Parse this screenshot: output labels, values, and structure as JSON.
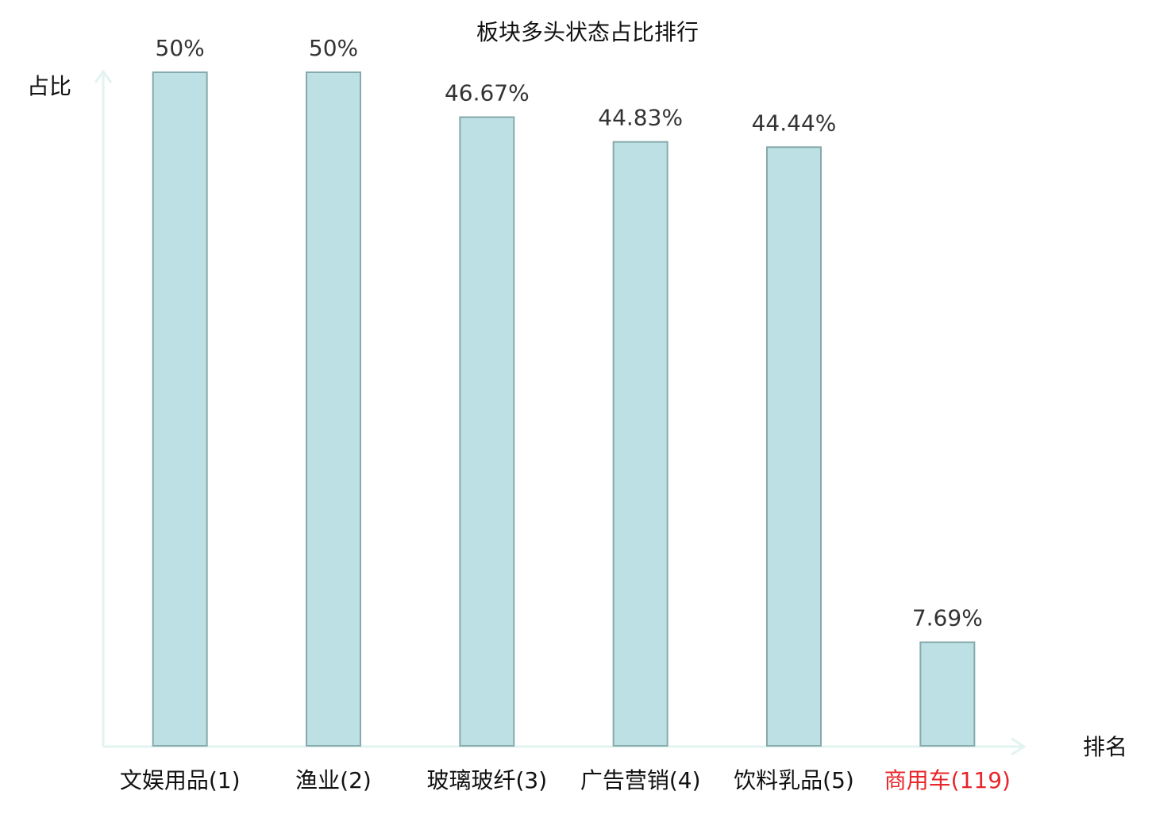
{
  "chart_data": {
    "type": "bar",
    "title": "板块多头状态占比排行",
    "y_label": "占比",
    "x_label": "排名",
    "categories": [
      "文娱用品(1)",
      "渔业(2)",
      "玻璃玻纤(3)",
      "广告营销(4)",
      "饮料乳品(5)",
      "商用车(119)"
    ],
    "category_colors": [
      "#111111",
      "#111111",
      "#111111",
      "#111111",
      "#111111",
      "#e8262b"
    ],
    "values": [
      50,
      50,
      46.67,
      44.83,
      44.44,
      7.69
    ],
    "value_labels": [
      "50%",
      "50%",
      "46.67%",
      "44.83%",
      "44.44%",
      "7.69%"
    ],
    "color": "#bce0e3",
    "edge_color": "#86a9ab",
    "ylim": [
      0,
      50
    ]
  }
}
